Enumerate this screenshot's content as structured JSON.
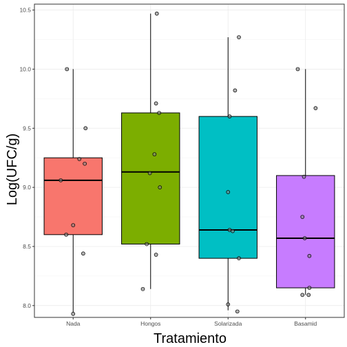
{
  "chart_data": {
    "type": "boxplot",
    "xlabel": "Tratamiento",
    "ylabel": "Log(UFC/g)",
    "categories": [
      "Nada",
      "Hongos",
      "Solarizada",
      "Basamid"
    ],
    "ylim": [
      7.9,
      10.55
    ],
    "yticks": [
      8.0,
      8.5,
      9.0,
      9.5,
      10.0,
      10.5
    ],
    "ytick_labels": [
      "8.0",
      "8.5",
      "9.0",
      "9.5",
      "10.0",
      "10.5"
    ],
    "grid": true,
    "legend": "none",
    "boxes": [
      {
        "category": "Nada",
        "color": "#F8766D",
        "whisker_low": 7.94,
        "q1": 8.6,
        "median": 9.06,
        "q3": 9.25,
        "whisker_high": 10.0
      },
      {
        "category": "Hongos",
        "color": "#7CAE00",
        "whisker_low": 8.14,
        "q1": 8.52,
        "median": 9.13,
        "q3": 9.63,
        "whisker_high": 10.47
      },
      {
        "category": "Solarizada",
        "color": "#00BFC4",
        "whisker_low": 7.96,
        "q1": 8.4,
        "median": 8.64,
        "q3": 9.6,
        "whisker_high": 10.27
      },
      {
        "category": "Basamid",
        "color": "#C77CFF",
        "whisker_low": 8.09,
        "q1": 8.15,
        "median": 8.57,
        "q3": 9.1,
        "whisker_high": 10.0
      }
    ],
    "points": [
      {
        "category": "Nada",
        "jitter": [
          -0.08,
          0.16,
          0.08,
          0.15,
          -0.16,
          0.0,
          -0.09,
          0.13,
          0.0
        ],
        "values": [
          10.0,
          9.5,
          9.24,
          9.2,
          9.06,
          8.68,
          8.6,
          8.44,
          7.93
        ]
      },
      {
        "category": "Hongos",
        "jitter": [
          0.08,
          0.07,
          0.11,
          0.05,
          -0.01,
          0.12,
          -0.05,
          0.07,
          -0.1
        ],
        "values": [
          10.47,
          9.71,
          9.63,
          9.28,
          9.12,
          9.0,
          8.52,
          8.43,
          8.14
        ]
      },
      {
        "category": "Solarizada",
        "jitter": [
          0.14,
          0.09,
          0.02,
          0.0,
          0.02,
          0.06,
          0.14,
          0.0,
          0.12
        ],
        "values": [
          10.27,
          9.82,
          9.6,
          8.96,
          8.64,
          8.63,
          8.4,
          8.01,
          7.95
        ]
      },
      {
        "category": "Basamid",
        "jitter": [
          -0.1,
          0.13,
          -0.02,
          -0.04,
          -0.01,
          0.05,
          0.05,
          -0.04,
          0.04
        ],
        "values": [
          10.0,
          9.67,
          9.09,
          8.75,
          8.57,
          8.42,
          8.15,
          8.09,
          8.09
        ]
      }
    ]
  }
}
